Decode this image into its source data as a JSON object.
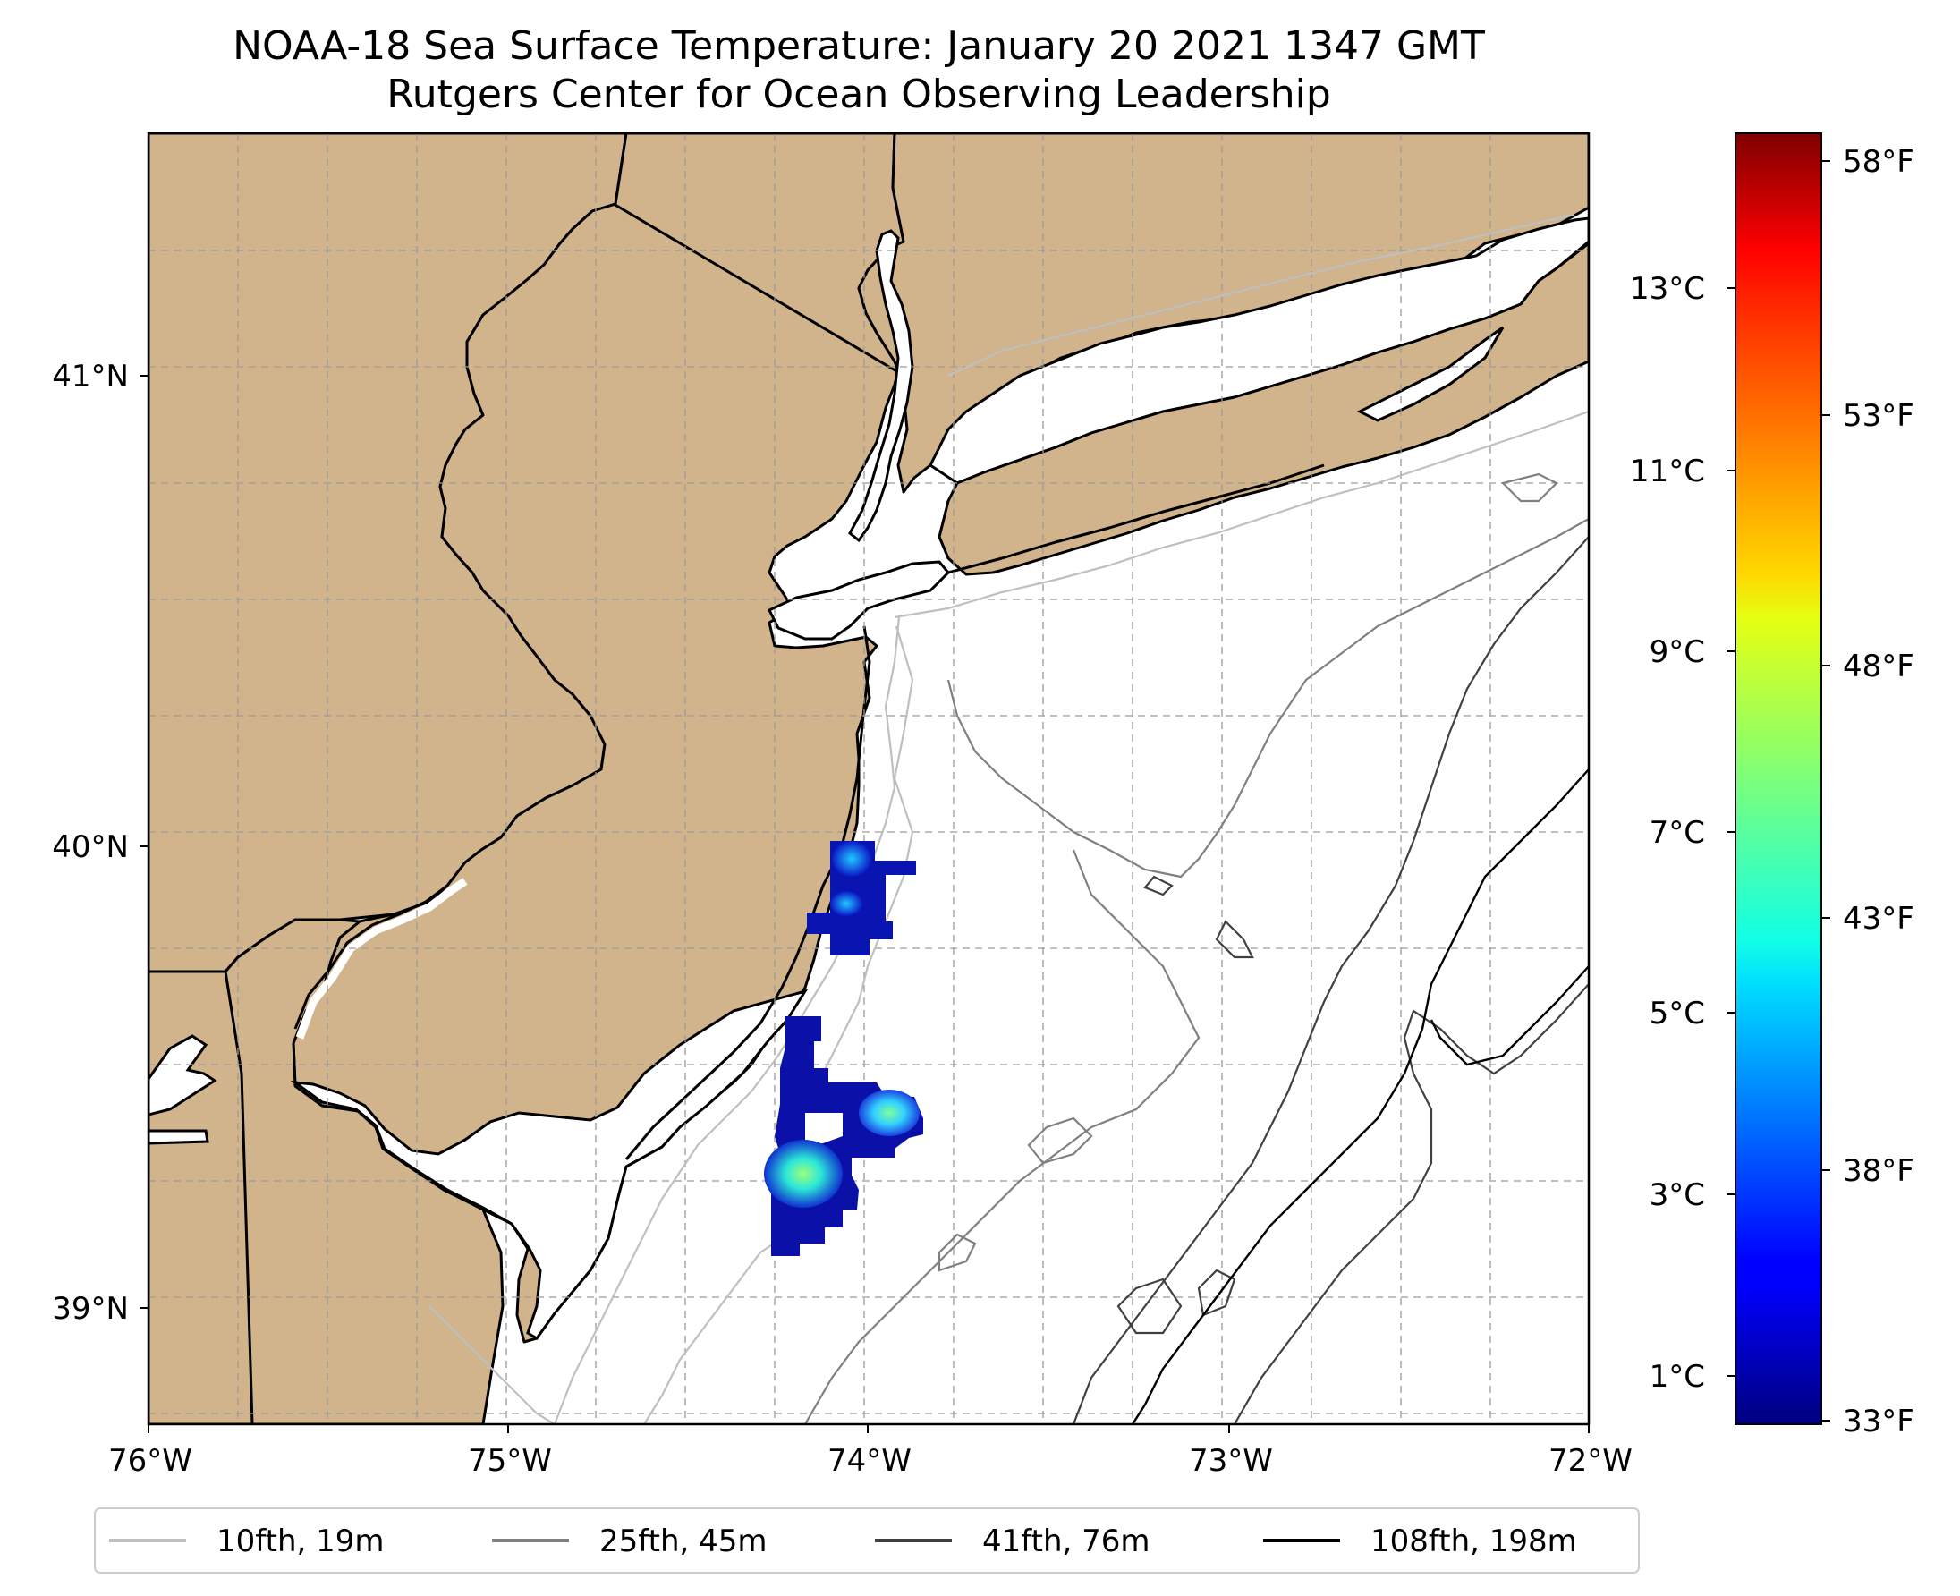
{
  "title": {
    "line1": "NOAA-18 Sea Surface Temperature: January 20 2021 1347 GMT",
    "line2": "Rutgers Center for Ocean Observing Leadership"
  },
  "map": {
    "lon_range": [
      -76,
      -72
    ],
    "lat_range": [
      38.75,
      41.5
    ],
    "x_ticks": [
      "76°W",
      "75°W",
      "74°W",
      "73°W",
      "72°W"
    ],
    "y_ticks": [
      "39°N",
      "40°N",
      "41°N"
    ],
    "land_color": "#d2b48c",
    "ocean_color": "#ffffff",
    "grid": true
  },
  "colorbar": {
    "colormap": "jet",
    "celsius_ticks": [
      "1°C",
      "3°C",
      "5°C",
      "7°C",
      "9°C",
      "11°C",
      "13°C"
    ],
    "fahrenheit_ticks": [
      "33°F",
      "38°F",
      "43°F",
      "48°F",
      "53°F",
      "58°F"
    ],
    "range_celsius": [
      0.5,
      14.6
    ]
  },
  "legend": {
    "items": [
      {
        "label": "10fth, 19m",
        "color": "#bfbfbf"
      },
      {
        "label": "25fth, 45m",
        "color": "#808080"
      },
      {
        "label": "41fth, 76m",
        "color": "#404040"
      },
      {
        "label": "108fth, 198m",
        "color": "#000000"
      }
    ]
  }
}
